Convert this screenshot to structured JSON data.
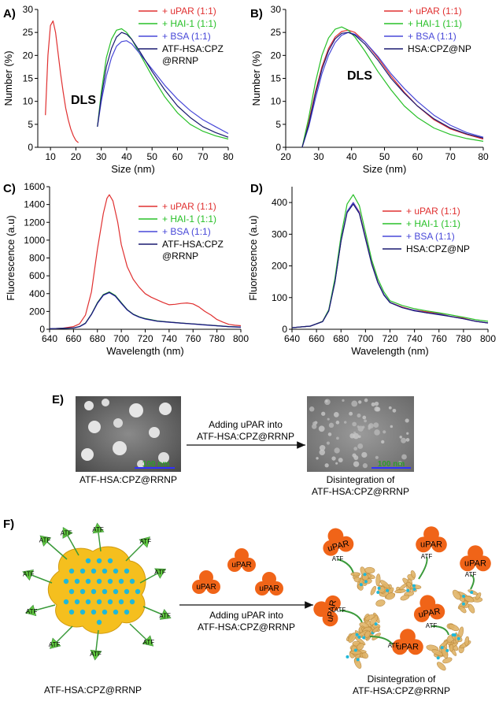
{
  "figure": {
    "panel_labels": [
      "A)",
      "B)",
      "C)",
      "D)",
      "E)",
      "F)"
    ],
    "dls_label": "DLS",
    "panel_e": {
      "arrow_text": [
        "Adding uPAR into",
        "ATF-HSA:CPZ@RRNP"
      ],
      "scale_bar": "100 nm",
      "left_caption": "ATF-HSA:CPZ@RRNP",
      "right_caption": [
        "Disintegration of",
        "ATF-HSA:CPZ@RRNP"
      ]
    },
    "panel_f": {
      "ligand_label": "ATF",
      "receptor_label": "uPAR",
      "arrow_text": [
        "Adding uPAR into",
        "ATF-HSA:CPZ@RRNP"
      ],
      "left_caption": "ATF-HSA:CPZ@RRNP",
      "right_caption": [
        "Disintegration of",
        "ATF-HSA:CPZ@RRNP"
      ]
    }
  },
  "colors": {
    "uPAR": "#e03030",
    "HAI1": "#28c028",
    "BSA": "#4848d8",
    "base": "#1a1a70",
    "sphere": "#f5bf1e",
    "dot": "#20b8d8",
    "receptor": "#f06418",
    "ligand": "#60c840"
  },
  "chart_data": [
    {
      "type": "line",
      "panel": "A",
      "xlabel": "Size (nm)",
      "ylabel": "Number (%)",
      "xlim": [
        5,
        80
      ],
      "ylim": [
        0,
        30
      ],
      "xticks": [
        10,
        20,
        30,
        40,
        50,
        60,
        70,
        80
      ],
      "yticks": [
        0,
        5,
        10,
        15,
        20,
        25,
        30
      ],
      "legend": [
        "+ uPAR (1:1)",
        "+ HAI-1 (1:1)",
        "+ BSA (1:1)",
        "ATF-HSA:CPZ\n@RRNP"
      ],
      "series": [
        {
          "name": "+ uPAR (1:1)",
          "color": "#e03030",
          "x": [
            8,
            9,
            10,
            11,
            12,
            13,
            14,
            15,
            16,
            17,
            18,
            19,
            20,
            21
          ],
          "y": [
            7,
            20,
            26.5,
            27.5,
            25,
            20.5,
            16,
            12,
            8.5,
            6,
            4,
            2.5,
            1.5,
            1
          ]
        },
        {
          "name": "+ HAI-1 (1:1)",
          "color": "#28c028",
          "x": [
            28.5,
            30,
            32,
            34,
            36,
            38,
            40,
            42,
            45,
            50,
            55,
            60,
            65,
            70,
            75,
            80
          ],
          "y": [
            4.5,
            12,
            19.5,
            23.5,
            25.5,
            25.8,
            25,
            23.5,
            20.5,
            15.5,
            11,
            7.5,
            5,
            3.5,
            2.5,
            1.8
          ]
        },
        {
          "name": "+ BSA (1:1)",
          "color": "#4848d8",
          "x": [
            28.5,
            30,
            32,
            34,
            36,
            38,
            40,
            42,
            45,
            50,
            55,
            60,
            65,
            70,
            75,
            80
          ],
          "y": [
            4.5,
            10,
            15.5,
            19.5,
            22,
            23,
            23.2,
            22.5,
            20.5,
            17,
            13.5,
            10.5,
            8,
            6,
            4.5,
            3
          ]
        },
        {
          "name": "ATF-HSA:CPZ\n@RRNP",
          "color": "#1a1a70",
          "x": [
            28.5,
            30,
            32,
            34,
            36,
            38,
            40,
            42,
            45,
            50,
            55,
            60,
            65,
            70,
            75,
            80
          ],
          "y": [
            4.5,
            11,
            17.5,
            21.5,
            24,
            25,
            24.6,
            23.5,
            21,
            16.5,
            12.5,
            9,
            6.5,
            4.5,
            3.2,
            2.2
          ]
        }
      ]
    },
    {
      "type": "line",
      "panel": "B",
      "xlabel": "Size (nm)",
      "ylabel": "Number (%)",
      "xlim": [
        20,
        80
      ],
      "ylim": [
        0,
        30
      ],
      "xticks": [
        20,
        30,
        40,
        50,
        60,
        70,
        80
      ],
      "yticks": [
        0,
        5,
        10,
        15,
        20,
        25,
        30
      ],
      "legend": [
        "+ uPAR (1:1)",
        "+ HAI-1 (1:1)",
        "+ BSA (1:1)",
        "HSA:CPZ@NP"
      ],
      "series": [
        {
          "name": "+ uPAR (1:1)",
          "color": "#e03030",
          "x": [
            25,
            27,
            29,
            31,
            33,
            35,
            37,
            39,
            41,
            44,
            48,
            52,
            56,
            60,
            65,
            70,
            75,
            80
          ],
          "y": [
            0,
            5.5,
            12,
            17.5,
            21.5,
            24,
            25.2,
            25.5,
            25,
            23,
            19.5,
            15.5,
            12,
            9,
            6,
            4,
            2.8,
            1.8
          ]
        },
        {
          "name": "+ HAI-1 (1:1)",
          "color": "#28c028",
          "x": [
            25,
            27,
            29,
            31,
            33,
            35,
            37,
            39,
            41,
            44,
            48,
            52,
            56,
            60,
            65,
            70,
            75,
            80
          ],
          "y": [
            0,
            6.5,
            14,
            20,
            23.8,
            25.7,
            26.2,
            25.5,
            24,
            21,
            16.5,
            12.5,
            9,
            6.5,
            4.2,
            2.8,
            1.9,
            1.3
          ]
        },
        {
          "name": "+ BSA (1:1)",
          "color": "#4848d8",
          "x": [
            25,
            27,
            29,
            31,
            33,
            35,
            37,
            39,
            41,
            44,
            48,
            52,
            56,
            60,
            65,
            70,
            75,
            80
          ],
          "y": [
            0,
            4.5,
            10.5,
            16,
            20,
            22.8,
            24.4,
            25,
            24.6,
            23,
            19.8,
            16,
            12.8,
            10,
            7,
            4.8,
            3.2,
            2.2
          ]
        },
        {
          "name": "HSA:CPZ@NP",
          "color": "#1a1a70",
          "x": [
            25,
            27,
            29,
            31,
            33,
            35,
            37,
            39,
            41,
            44,
            48,
            52,
            56,
            60,
            65,
            70,
            75,
            80
          ],
          "y": [
            0,
            5,
            11.5,
            17,
            21,
            23.6,
            24.8,
            25,
            24.4,
            22.5,
            19,
            15,
            11.8,
            9,
            6.2,
            4.2,
            2.9,
            2
          ]
        }
      ]
    },
    {
      "type": "line",
      "panel": "C",
      "xlabel": "Wavelength (nm)",
      "ylabel": "Fluorescence (a.u)",
      "xlim": [
        640,
        800
      ],
      "ylim": [
        0,
        1600
      ],
      "xticks": [
        640,
        660,
        680,
        700,
        720,
        740,
        760,
        780,
        800
      ],
      "yticks": [
        0,
        200,
        400,
        600,
        800,
        1000,
        1200,
        1400,
        1600
      ],
      "legend": [
        "+ uPAR (1:1)",
        "+ HAI-1 (1:1)",
        "+ BSA (1:1)",
        "ATF-HSA:CPZ\n@RRNP"
      ],
      "series": [
        {
          "name": "+ uPAR (1:1)",
          "color": "#e03030",
          "x": [
            640,
            650,
            660,
            665,
            670,
            675,
            680,
            685,
            688,
            690,
            693,
            697,
            700,
            705,
            710,
            715,
            720,
            725,
            730,
            735,
            740,
            745,
            750,
            755,
            760,
            765,
            770,
            775,
            780,
            785,
            790,
            795,
            800
          ],
          "y": [
            5,
            10,
            30,
            60,
            160,
            420,
            900,
            1300,
            1470,
            1510,
            1440,
            1200,
            950,
            700,
            560,
            470,
            400,
            360,
            330,
            300,
            275,
            280,
            290,
            295,
            285,
            250,
            200,
            160,
            110,
            80,
            55,
            45,
            40
          ]
        },
        {
          "name": "+ HAI-1 (1:1)",
          "color": "#28c028",
          "x": [
            640,
            660,
            665,
            670,
            675,
            680,
            685,
            690,
            695,
            700,
            705,
            710,
            715,
            720,
            730,
            740,
            750,
            760,
            770,
            780,
            790,
            800
          ],
          "y": [
            5,
            15,
            30,
            70,
            170,
            300,
            390,
            420,
            380,
            300,
            220,
            170,
            140,
            120,
            95,
            80,
            70,
            60,
            50,
            40,
            30,
            25
          ]
        },
        {
          "name": "+ BSA (1:1)",
          "color": "#4848d8",
          "x": [
            640,
            660,
            665,
            670,
            675,
            680,
            685,
            690,
            695,
            700,
            705,
            710,
            715,
            720,
            730,
            740,
            750,
            760,
            770,
            780,
            790,
            800
          ],
          "y": [
            5,
            15,
            28,
            65,
            165,
            290,
            380,
            410,
            370,
            290,
            215,
            165,
            135,
            115,
            90,
            78,
            68,
            58,
            48,
            38,
            28,
            22
          ]
        },
        {
          "name": "ATF-HSA:CPZ\n@RRNP",
          "color": "#1a1a70",
          "x": [
            640,
            660,
            665,
            670,
            675,
            680,
            685,
            690,
            695,
            700,
            705,
            710,
            715,
            720,
            730,
            740,
            750,
            760,
            770,
            780,
            790,
            800
          ],
          "y": [
            5,
            15,
            30,
            68,
            168,
            295,
            385,
            415,
            375,
            295,
            218,
            168,
            138,
            118,
            92,
            80,
            70,
            60,
            50,
            40,
            30,
            25
          ]
        }
      ]
    },
    {
      "type": "line",
      "panel": "D",
      "xlabel": "Wavelength (nm)",
      "ylabel": "Fluorescence (a.u)",
      "xlim": [
        640,
        800
      ],
      "ylim": [
        0,
        450
      ],
      "xticks": [
        640,
        660,
        680,
        700,
        720,
        740,
        760,
        780,
        800
      ],
      "yticks": [
        0,
        100,
        200,
        300,
        400
      ],
      "legend": [
        "+ uPAR (1:1)",
        "+ HAI-1 (1:1)",
        "+ BSA (1:1)",
        "HSA:CPZ@NP"
      ],
      "series": [
        {
          "name": "+ uPAR (1:1)",
          "color": "#e03030",
          "x": [
            640,
            655,
            665,
            670,
            675,
            680,
            685,
            690,
            695,
            700,
            705,
            710,
            715,
            720,
            730,
            740,
            750,
            760,
            770,
            780,
            790,
            800
          ],
          "y": [
            5,
            10,
            25,
            60,
            150,
            280,
            370,
            400,
            370,
            290,
            210,
            150,
            110,
            85,
            70,
            60,
            55,
            50,
            40,
            35,
            25,
            20
          ]
        },
        {
          "name": "+ HAI-1 (1:1)",
          "color": "#28c028",
          "x": [
            640,
            655,
            665,
            670,
            675,
            680,
            685,
            690,
            695,
            700,
            705,
            710,
            715,
            720,
            730,
            740,
            750,
            760,
            770,
            780,
            790,
            800
          ],
          "y": [
            5,
            10,
            25,
            62,
            160,
            295,
            395,
            425,
            390,
            305,
            220,
            160,
            118,
            90,
            75,
            65,
            58,
            52,
            45,
            38,
            30,
            25
          ]
        },
        {
          "name": "+ BSA (1:1)",
          "color": "#4848d8",
          "x": [
            640,
            655,
            665,
            670,
            675,
            680,
            685,
            690,
            695,
            700,
            705,
            710,
            715,
            720,
            730,
            740,
            750,
            760,
            770,
            780,
            790,
            800
          ],
          "y": [
            5,
            10,
            24,
            58,
            150,
            280,
            372,
            400,
            368,
            288,
            208,
            150,
            110,
            85,
            68,
            60,
            52,
            48,
            40,
            33,
            25,
            20
          ]
        },
        {
          "name": "HSA:CPZ@NP",
          "color": "#1a1a70",
          "x": [
            640,
            655,
            665,
            670,
            675,
            680,
            685,
            690,
            695,
            700,
            705,
            710,
            715,
            720,
            730,
            740,
            750,
            760,
            770,
            780,
            790,
            800
          ],
          "y": [
            5,
            10,
            24,
            58,
            148,
            278,
            368,
            395,
            365,
            285,
            206,
            148,
            108,
            84,
            68,
            58,
            52,
            46,
            40,
            33,
            25,
            20
          ]
        }
      ]
    }
  ]
}
